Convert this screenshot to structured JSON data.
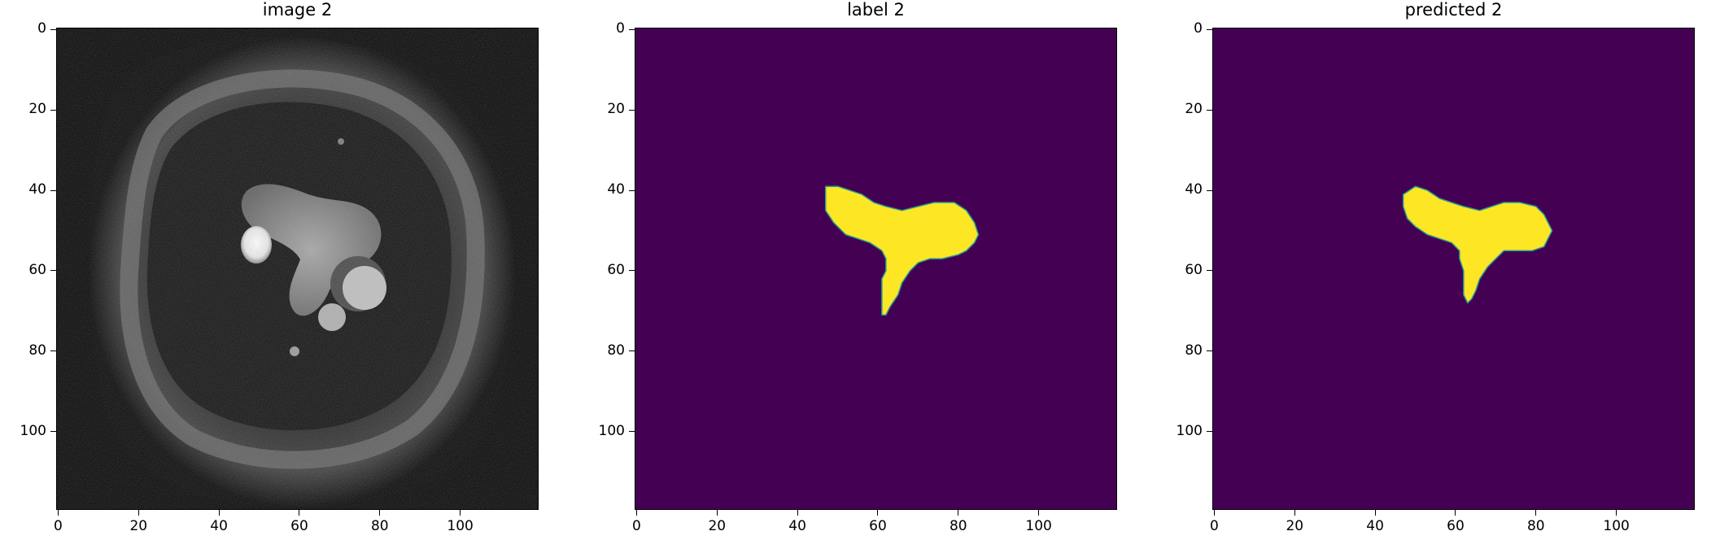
{
  "chart_data": [
    {
      "type": "image",
      "title": "image 2",
      "xlabel": "",
      "ylabel": "",
      "xlim": [
        -0.5,
        119.5
      ],
      "ylim": [
        119.5,
        -0.5
      ],
      "xticks": [
        "0",
        "20",
        "40",
        "60",
        "80",
        "100"
      ],
      "yticks": [
        "0",
        "20",
        "40",
        "60",
        "80",
        "100"
      ],
      "colormap": "gray",
      "content": "grayscale MRI slice"
    },
    {
      "type": "image",
      "title": "label 2",
      "xlabel": "",
      "ylabel": "",
      "xlim": [
        -0.5,
        119.5
      ],
      "ylim": [
        119.5,
        -0.5
      ],
      "xticks": [
        "0",
        "20",
        "40",
        "60",
        "80",
        "100"
      ],
      "yticks": [
        "0",
        "20",
        "40",
        "60",
        "80",
        "100"
      ],
      "colormap": "viridis",
      "background_color": "#440154",
      "mask_color": "#fde725",
      "mask_polygon": [
        [
          47,
          39
        ],
        [
          50,
          39
        ],
        [
          53,
          40
        ],
        [
          56,
          41
        ],
        [
          59,
          43
        ],
        [
          62,
          44
        ],
        [
          66,
          45
        ],
        [
          70,
          44
        ],
        [
          74,
          43
        ],
        [
          79,
          43
        ],
        [
          82,
          45
        ],
        [
          84,
          48
        ],
        [
          85,
          51
        ],
        [
          84,
          53
        ],
        [
          82,
          55
        ],
        [
          80,
          56
        ],
        [
          76,
          57
        ],
        [
          73,
          57
        ],
        [
          70,
          58
        ],
        [
          68,
          60
        ],
        [
          66,
          63
        ],
        [
          65,
          66
        ],
        [
          63,
          69
        ],
        [
          62,
          71
        ],
        [
          61,
          71
        ],
        [
          61,
          68
        ],
        [
          61,
          65
        ],
        [
          61,
          62
        ],
        [
          62,
          60
        ],
        [
          62,
          57
        ],
        [
          61,
          55
        ],
        [
          58,
          53
        ],
        [
          55,
          52
        ],
        [
          52,
          51
        ],
        [
          49,
          48
        ],
        [
          47,
          45
        ],
        [
          47,
          42
        ]
      ]
    },
    {
      "type": "image",
      "title": "predicted 2",
      "xlabel": "",
      "ylabel": "",
      "xlim": [
        -0.5,
        119.5
      ],
      "ylim": [
        119.5,
        -0.5
      ],
      "xticks": [
        "0",
        "20",
        "40",
        "60",
        "80",
        "100"
      ],
      "yticks": [
        "0",
        "20",
        "40",
        "60",
        "80",
        "100"
      ],
      "colormap": "viridis",
      "background_color": "#440154",
      "mask_color": "#fde725",
      "mask_polygon": [
        [
          47,
          41
        ],
        [
          50,
          39
        ],
        [
          53,
          40
        ],
        [
          56,
          42
        ],
        [
          59,
          43
        ],
        [
          62,
          44
        ],
        [
          66,
          45
        ],
        [
          69,
          44
        ],
        [
          72,
          43
        ],
        [
          76,
          43
        ],
        [
          80,
          44
        ],
        [
          82,
          46
        ],
        [
          83,
          48
        ],
        [
          84,
          50
        ],
        [
          83,
          52
        ],
        [
          82,
          54
        ],
        [
          79,
          55
        ],
        [
          75,
          55
        ],
        [
          72,
          55
        ],
        [
          70,
          57
        ],
        [
          68,
          59
        ],
        [
          66,
          62
        ],
        [
          65,
          65
        ],
        [
          64,
          67
        ],
        [
          63,
          68
        ],
        [
          62,
          66
        ],
        [
          62,
          63
        ],
        [
          62,
          60
        ],
        [
          61,
          57
        ],
        [
          61,
          55
        ],
        [
          59,
          53
        ],
        [
          56,
          52
        ],
        [
          53,
          51
        ],
        [
          50,
          49
        ],
        [
          48,
          47
        ],
        [
          47,
          44
        ]
      ]
    }
  ]
}
